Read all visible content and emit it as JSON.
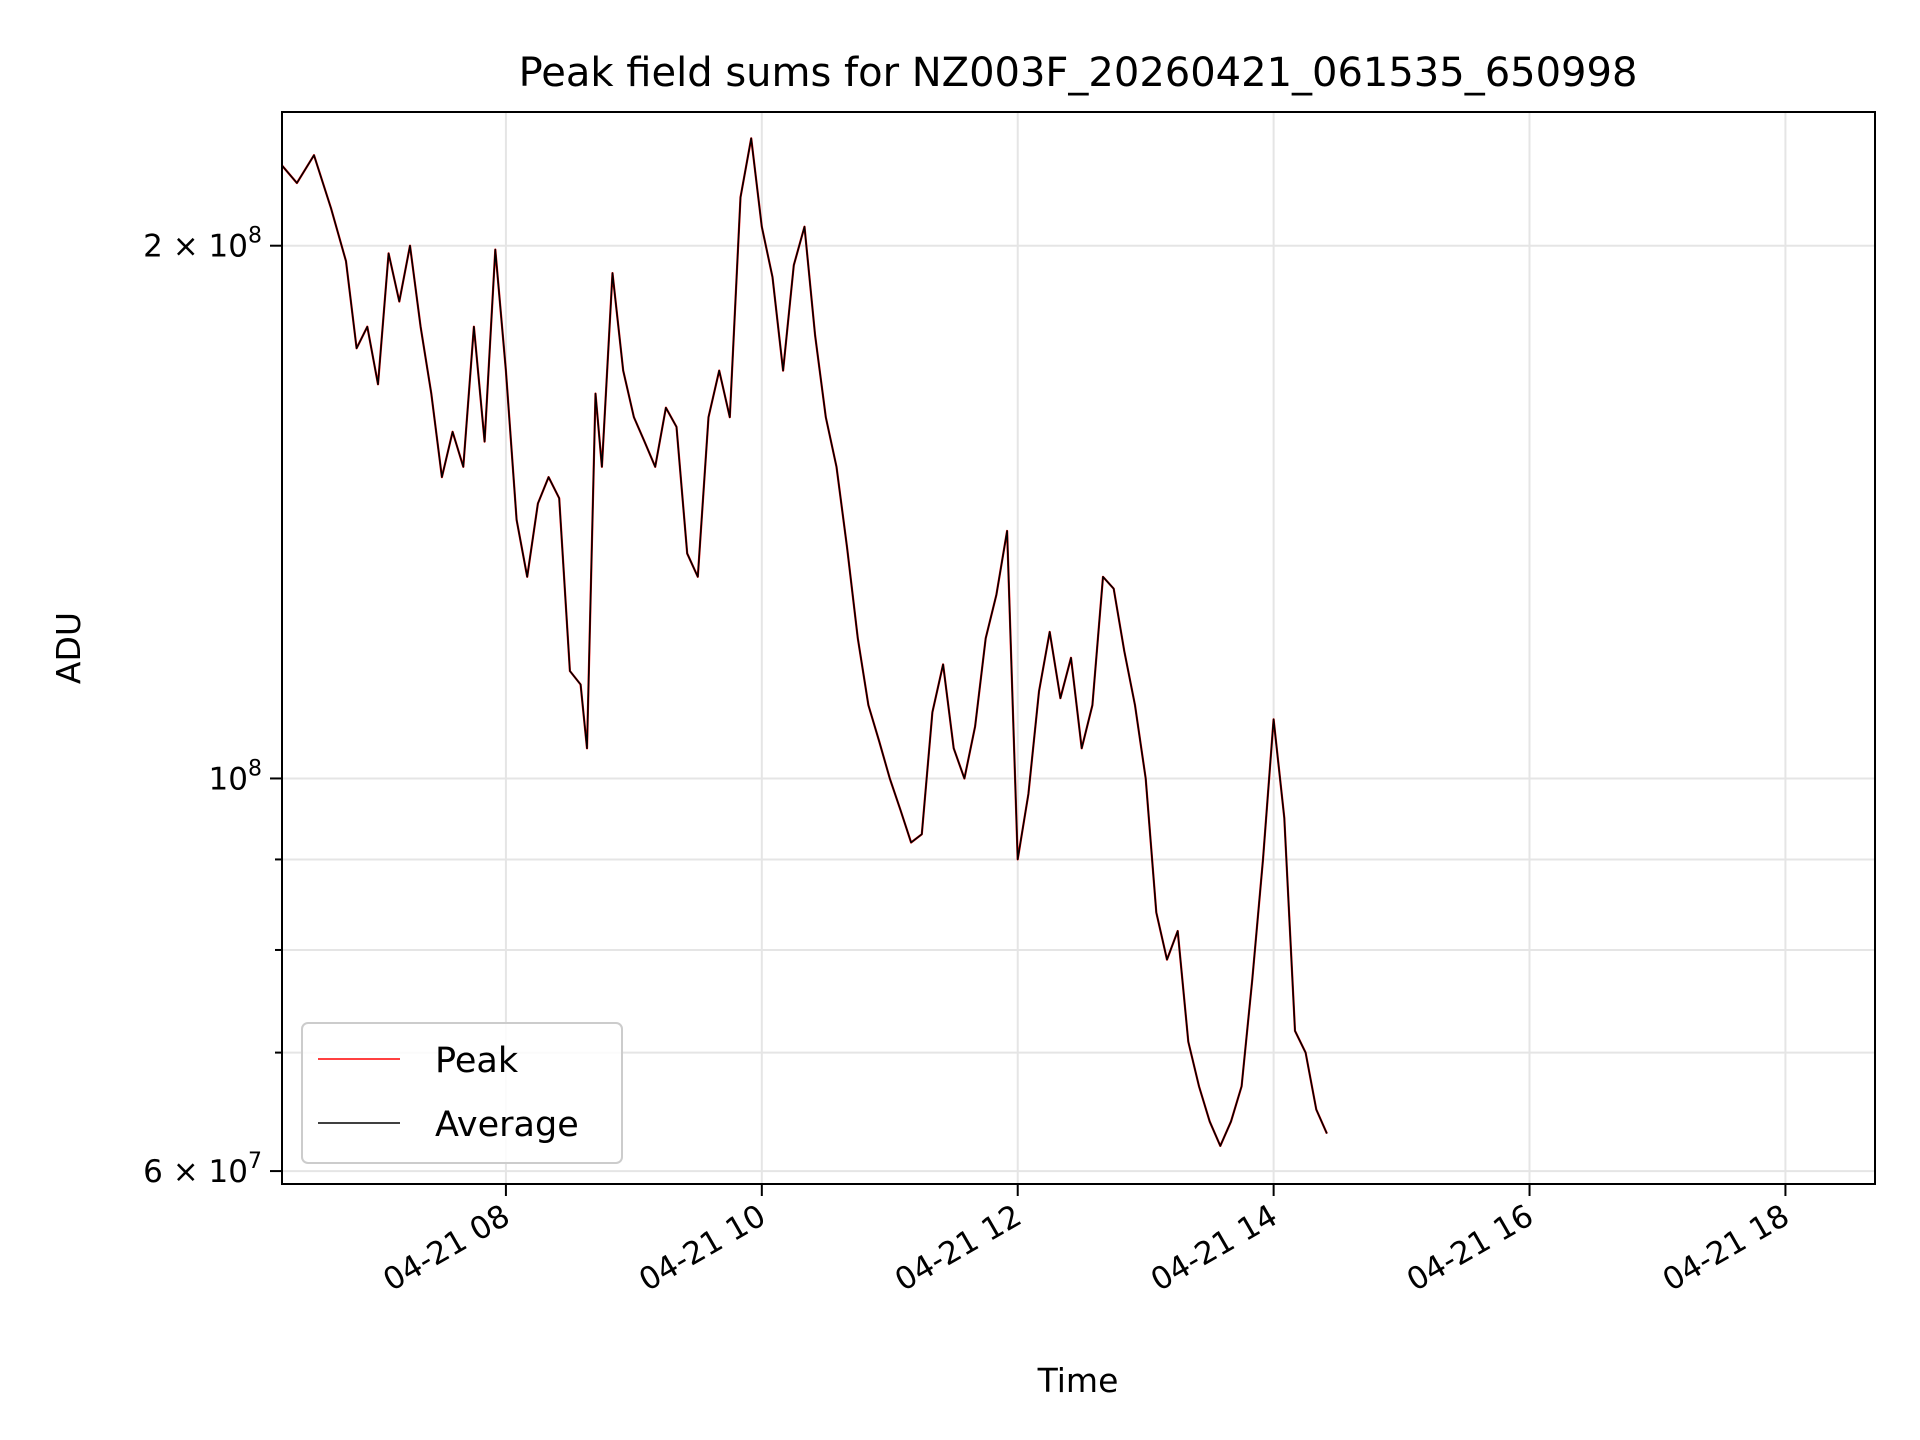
{
  "chart_data": {
    "type": "line",
    "title": "Peak field sums for NZ003F_20260421_061535_650998",
    "xlabel": "Time",
    "ylabel": "ADU",
    "yscale": "log",
    "grid": true,
    "legend_position": "lower-left",
    "xlim": [
      "04-21 06:15",
      "04-21 18:42"
    ],
    "ylim": [
      59000000,
      238000000
    ],
    "x_ticks": [
      {
        "time": "04-21 08:00",
        "label": "04-21 08"
      },
      {
        "time": "04-21 10:00",
        "label": "04-21 10"
      },
      {
        "time": "04-21 12:00",
        "label": "04-21 12"
      },
      {
        "time": "04-21 14:00",
        "label": "04-21 14"
      },
      {
        "time": "04-21 16:00",
        "label": "04-21 16"
      },
      {
        "time": "04-21 18:00",
        "label": "04-21 18"
      }
    ],
    "y_major_ticks": [
      {
        "value": 60000000,
        "mantissa": "6",
        "exponent": "7"
      },
      {
        "value": 100000000,
        "mantissa": "",
        "exponent": "8"
      },
      {
        "value": 200000000,
        "mantissa": "2",
        "exponent": "8"
      }
    ],
    "y_minor_ticks": [
      70000000,
      80000000,
      90000000
    ],
    "series": [
      {
        "name": "Peak",
        "color": "#ff0000",
        "points": [
          [
            "04-21 06:15",
            222000000
          ],
          [
            "04-21 06:22",
            217000000
          ],
          [
            "04-21 06:30",
            225000000
          ],
          [
            "04-21 06:38",
            210000000
          ],
          [
            "04-21 06:45",
            196000000
          ],
          [
            "04-21 06:50",
            175000000
          ],
          [
            "04-21 06:55",
            180000000
          ],
          [
            "04-21 07:00",
            167000000
          ],
          [
            "04-21 07:05",
            198000000
          ],
          [
            "04-21 07:10",
            186000000
          ],
          [
            "04-21 07:15",
            200000000
          ],
          [
            "04-21 07:20",
            180000000
          ],
          [
            "04-21 07:25",
            165000000
          ],
          [
            "04-21 07:30",
            148000000
          ],
          [
            "04-21 07:35",
            157000000
          ],
          [
            "04-21 07:40",
            150000000
          ],
          [
            "04-21 07:45",
            180000000
          ],
          [
            "04-21 07:50",
            155000000
          ],
          [
            "04-21 07:55",
            199000000
          ],
          [
            "04-21 08:00",
            170000000
          ],
          [
            "04-21 08:05",
            140000000
          ],
          [
            "04-21 08:10",
            130000000
          ],
          [
            "04-21 08:15",
            143000000
          ],
          [
            "04-21 08:20",
            148000000
          ],
          [
            "04-21 08:25",
            144000000
          ],
          [
            "04-21 08:30",
            115000000
          ],
          [
            "04-21 08:35",
            113000000
          ],
          [
            "04-21 08:38",
            104000000
          ],
          [
            "04-21 08:42",
            165000000
          ],
          [
            "04-21 08:45",
            150000000
          ],
          [
            "04-21 08:50",
            193000000
          ],
          [
            "04-21 08:55",
            170000000
          ],
          [
            "04-21 09:00",
            160000000
          ],
          [
            "04-21 09:05",
            155000000
          ],
          [
            "04-21 09:10",
            150000000
          ],
          [
            "04-21 09:15",
            162000000
          ],
          [
            "04-21 09:20",
            158000000
          ],
          [
            "04-21 09:25",
            134000000
          ],
          [
            "04-21 09:30",
            130000000
          ],
          [
            "04-21 09:35",
            160000000
          ],
          [
            "04-21 09:40",
            170000000
          ],
          [
            "04-21 09:45",
            160000000
          ],
          [
            "04-21 09:50",
            213000000
          ],
          [
            "04-21 09:55",
            230000000
          ],
          [
            "04-21 10:00",
            205000000
          ],
          [
            "04-21 10:05",
            192000000
          ],
          [
            "04-21 10:10",
            170000000
          ],
          [
            "04-21 10:15",
            195000000
          ],
          [
            "04-21 10:20",
            205000000
          ],
          [
            "04-21 10:25",
            178000000
          ],
          [
            "04-21 10:30",
            160000000
          ],
          [
            "04-21 10:35",
            150000000
          ],
          [
            "04-21 10:40",
            135000000
          ],
          [
            "04-21 10:45",
            120000000
          ],
          [
            "04-21 10:50",
            110000000
          ],
          [
            "04-21 10:55",
            105000000
          ],
          [
            "04-21 11:00",
            100000000
          ],
          [
            "04-21 11:05",
            96000000
          ],
          [
            "04-21 11:10",
            92000000
          ],
          [
            "04-21 11:15",
            93000000
          ],
          [
            "04-21 11:20",
            109000000
          ],
          [
            "04-21 11:25",
            116000000
          ],
          [
            "04-21 11:30",
            104000000
          ],
          [
            "04-21 11:35",
            100000000
          ],
          [
            "04-21 11:40",
            107000000
          ],
          [
            "04-21 11:45",
            120000000
          ],
          [
            "04-21 11:50",
            127000000
          ],
          [
            "04-21 11:55",
            138000000
          ],
          [
            "04-21 12:00",
            90000000
          ],
          [
            "04-21 12:05",
            98000000
          ],
          [
            "04-21 12:10",
            112000000
          ],
          [
            "04-21 12:15",
            121000000
          ],
          [
            "04-21 12:20",
            111000000
          ],
          [
            "04-21 12:25",
            117000000
          ],
          [
            "04-21 12:30",
            104000000
          ],
          [
            "04-21 12:35",
            110000000
          ],
          [
            "04-21 12:40",
            130000000
          ],
          [
            "04-21 12:45",
            128000000
          ],
          [
            "04-21 12:50",
            118000000
          ],
          [
            "04-21 12:55",
            110000000
          ],
          [
            "04-21 13:00",
            100000000
          ],
          [
            "04-21 13:05",
            84000000
          ],
          [
            "04-21 13:10",
            79000000
          ],
          [
            "04-21 13:15",
            82000000
          ],
          [
            "04-21 13:20",
            71000000
          ],
          [
            "04-21 13:25",
            67000000
          ],
          [
            "04-21 13:30",
            64000000
          ],
          [
            "04-21 13:35",
            62000000
          ],
          [
            "04-21 13:40",
            64000000
          ],
          [
            "04-21 13:45",
            67000000
          ],
          [
            "04-21 13:50",
            77000000
          ],
          [
            "04-21 13:55",
            90000000
          ],
          [
            "04-21 14:00",
            108000000
          ],
          [
            "04-21 14:05",
            95000000
          ],
          [
            "04-21 14:10",
            72000000
          ],
          [
            "04-21 14:15",
            70000000
          ],
          [
            "04-21 14:20",
            65000000
          ],
          [
            "04-21 14:25",
            63000000
          ]
        ]
      },
      {
        "name": "Average",
        "color": "#000000",
        "points": [
          [
            "04-21 06:15",
            222000000
          ],
          [
            "04-21 06:22",
            217000000
          ],
          [
            "04-21 06:30",
            225000000
          ],
          [
            "04-21 06:38",
            210000000
          ],
          [
            "04-21 06:45",
            196000000
          ],
          [
            "04-21 06:50",
            175000000
          ],
          [
            "04-21 06:55",
            180000000
          ],
          [
            "04-21 07:00",
            167000000
          ],
          [
            "04-21 07:05",
            198000000
          ],
          [
            "04-21 07:10",
            186000000
          ],
          [
            "04-21 07:15",
            200000000
          ],
          [
            "04-21 07:20",
            180000000
          ],
          [
            "04-21 07:25",
            165000000
          ],
          [
            "04-21 07:30",
            148000000
          ],
          [
            "04-21 07:35",
            157000000
          ],
          [
            "04-21 07:40",
            150000000
          ],
          [
            "04-21 07:45",
            180000000
          ],
          [
            "04-21 07:50",
            155000000
          ],
          [
            "04-21 07:55",
            199000000
          ],
          [
            "04-21 08:00",
            170000000
          ],
          [
            "04-21 08:05",
            140000000
          ],
          [
            "04-21 08:10",
            130000000
          ],
          [
            "04-21 08:15",
            143000000
          ],
          [
            "04-21 08:20",
            148000000
          ],
          [
            "04-21 08:25",
            144000000
          ],
          [
            "04-21 08:30",
            115000000
          ],
          [
            "04-21 08:35",
            113000000
          ],
          [
            "04-21 08:38",
            104000000
          ],
          [
            "04-21 08:42",
            165000000
          ],
          [
            "04-21 08:45",
            150000000
          ],
          [
            "04-21 08:50",
            193000000
          ],
          [
            "04-21 08:55",
            170000000
          ],
          [
            "04-21 09:00",
            160000000
          ],
          [
            "04-21 09:05",
            155000000
          ],
          [
            "04-21 09:10",
            150000000
          ],
          [
            "04-21 09:15",
            162000000
          ],
          [
            "04-21 09:20",
            158000000
          ],
          [
            "04-21 09:25",
            134000000
          ],
          [
            "04-21 09:30",
            130000000
          ],
          [
            "04-21 09:35",
            160000000
          ],
          [
            "04-21 09:40",
            170000000
          ],
          [
            "04-21 09:45",
            160000000
          ],
          [
            "04-21 09:50",
            213000000
          ],
          [
            "04-21 09:55",
            230000000
          ],
          [
            "04-21 10:00",
            205000000
          ],
          [
            "04-21 10:05",
            192000000
          ],
          [
            "04-21 10:10",
            170000000
          ],
          [
            "04-21 10:15",
            195000000
          ],
          [
            "04-21 10:20",
            205000000
          ],
          [
            "04-21 10:25",
            178000000
          ],
          [
            "04-21 10:30",
            160000000
          ],
          [
            "04-21 10:35",
            150000000
          ],
          [
            "04-21 10:40",
            135000000
          ],
          [
            "04-21 10:45",
            120000000
          ],
          [
            "04-21 10:50",
            110000000
          ],
          [
            "04-21 10:55",
            105000000
          ],
          [
            "04-21 11:00",
            100000000
          ],
          [
            "04-21 11:05",
            96000000
          ],
          [
            "04-21 11:10",
            92000000
          ],
          [
            "04-21 11:15",
            93000000
          ],
          [
            "04-21 11:20",
            109000000
          ],
          [
            "04-21 11:25",
            116000000
          ],
          [
            "04-21 11:30",
            104000000
          ],
          [
            "04-21 11:35",
            100000000
          ],
          [
            "04-21 11:40",
            107000000
          ],
          [
            "04-21 11:45",
            120000000
          ],
          [
            "04-21 11:50",
            127000000
          ],
          [
            "04-21 11:55",
            138000000
          ],
          [
            "04-21 12:00",
            90000000
          ],
          [
            "04-21 12:05",
            98000000
          ],
          [
            "04-21 12:10",
            112000000
          ],
          [
            "04-21 12:15",
            121000000
          ],
          [
            "04-21 12:20",
            111000000
          ],
          [
            "04-21 12:25",
            117000000
          ],
          [
            "04-21 12:30",
            104000000
          ],
          [
            "04-21 12:35",
            110000000
          ],
          [
            "04-21 12:40",
            130000000
          ],
          [
            "04-21 12:45",
            128000000
          ],
          [
            "04-21 12:50",
            118000000
          ],
          [
            "04-21 12:55",
            110000000
          ],
          [
            "04-21 13:00",
            100000000
          ],
          [
            "04-21 13:05",
            84000000
          ],
          [
            "04-21 13:10",
            79000000
          ],
          [
            "04-21 13:15",
            82000000
          ],
          [
            "04-21 13:20",
            71000000
          ],
          [
            "04-21 13:25",
            67000000
          ],
          [
            "04-21 13:30",
            64000000
          ],
          [
            "04-21 13:35",
            62000000
          ],
          [
            "04-21 13:40",
            64000000
          ],
          [
            "04-21 13:45",
            67000000
          ],
          [
            "04-21 13:50",
            77000000
          ],
          [
            "04-21 13:55",
            90000000
          ],
          [
            "04-21 14:00",
            108000000
          ],
          [
            "04-21 14:05",
            95000000
          ],
          [
            "04-21 14:10",
            72000000
          ],
          [
            "04-21 14:15",
            70000000
          ],
          [
            "04-21 14:20",
            65000000
          ],
          [
            "04-21 14:25",
            63000000
          ]
        ]
      }
    ]
  }
}
